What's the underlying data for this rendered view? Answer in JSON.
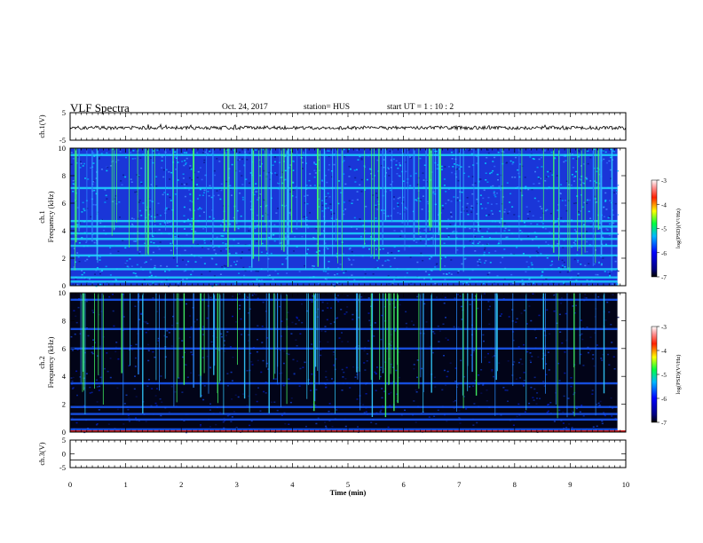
{
  "header": {
    "title": "VLF Spectra",
    "date": "Oct. 24, 2017",
    "station": "station= HUS",
    "start": "start  UT =   1 : 10 : 2"
  },
  "colorbar": {
    "ticks": [
      "-3",
      "-4",
      "-5",
      "-6",
      "-7"
    ],
    "label": "log(PSD)(V²/Hz)"
  },
  "chart_data": [
    {
      "type": "line",
      "ylabel": "ch.1(V)",
      "ylim": [
        -5,
        5
      ],
      "yticks": [
        "5",
        "-5"
      ],
      "xlim": [
        0,
        10
      ],
      "series": [
        {
          "values": [
            -0.5,
            -0.5
          ]
        }
      ]
    },
    {
      "type": "heatmap",
      "ylabel": "ch.1\nFrequency (kHz)",
      "ylim": [
        0,
        10
      ],
      "yticks": [
        "0",
        "2",
        "4",
        "6",
        "8",
        "10"
      ],
      "xlim": [
        0,
        10
      ],
      "bands_khz": [
        0.3,
        0.6,
        1.2,
        2.2,
        2.9,
        3.4,
        3.8,
        4.3,
        4.7,
        7.1,
        9.5
      ],
      "colorbar_range": [
        -7,
        -3
      ]
    },
    {
      "type": "heatmap",
      "ylabel": "ch.2\nFrequency (kHz)",
      "ylim": [
        0,
        10
      ],
      "yticks": [
        "0",
        "2",
        "4",
        "6",
        "8",
        "10"
      ],
      "xlim": [
        0,
        10
      ],
      "bands_khz": [
        0.2,
        0.9,
        1.3,
        1.8,
        3.5,
        6.0,
        7.4,
        9.5
      ],
      "colorbar_range": [
        -7,
        -3
      ]
    },
    {
      "type": "line",
      "ylabel": "ch.3(V)",
      "ylim": [
        -5,
        5
      ],
      "yticks": [
        "5",
        "0",
        "-5"
      ],
      "xlim": [
        0,
        10
      ],
      "xticks": [
        "0",
        "1",
        "2",
        "3",
        "4",
        "5",
        "6",
        "7",
        "8",
        "9",
        "10"
      ],
      "xlabel": "Time (min)",
      "series": [
        {
          "values": [
            -2.2,
            -2.2
          ]
        }
      ]
    }
  ]
}
